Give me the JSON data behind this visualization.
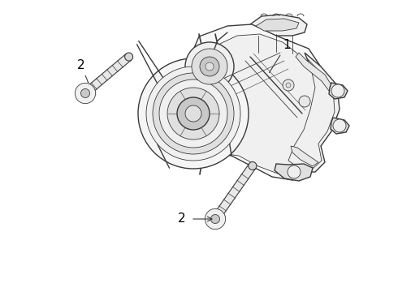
{
  "background_color": "#ffffff",
  "line_color": "#3a3a3a",
  "light_fill": "#f0f0f0",
  "mid_fill": "#e0e0e0",
  "dark_fill": "#c8c8c8",
  "label_color": "#000000",
  "fig_width": 4.9,
  "fig_height": 3.6,
  "dpi": 100,
  "item1_label": "1",
  "item2_label": "2",
  "lw_main": 1.0,
  "lw_detail": 0.6,
  "lw_thin": 0.4
}
